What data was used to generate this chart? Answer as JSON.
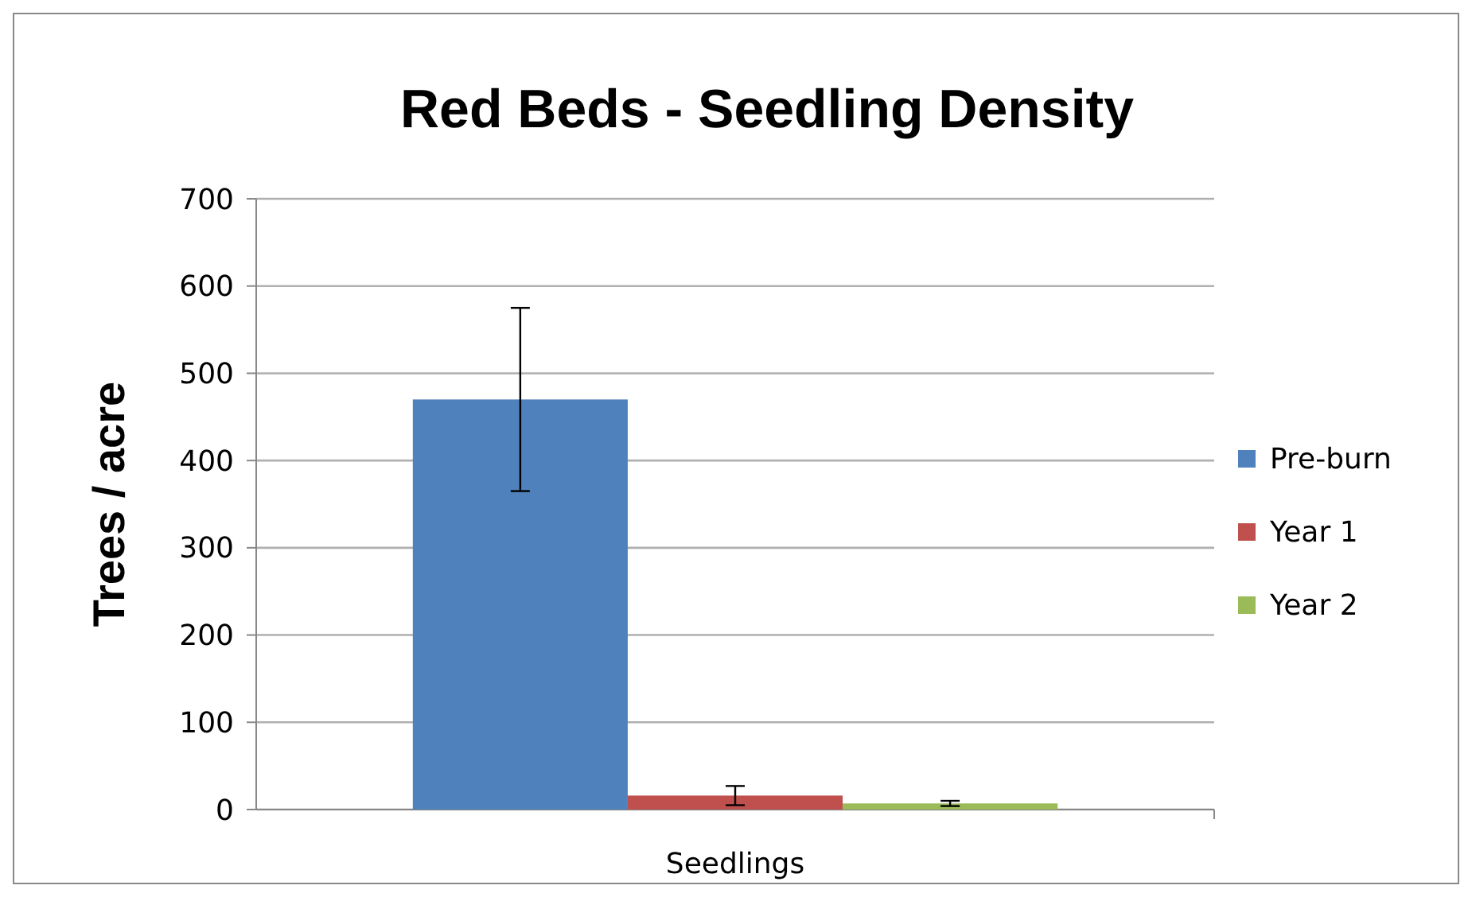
{
  "chart_data": {
    "type": "bar",
    "title": "Red Beds - Seedling Density",
    "ylabel": "Trees / acre",
    "categories": [
      "Seedlings"
    ],
    "series": [
      {
        "name": "Pre-burn",
        "color": "#4f81bd",
        "values": [
          470
        ],
        "errors": [
          105
        ]
      },
      {
        "name": "Year 1",
        "color": "#c0504d",
        "values": [
          16
        ],
        "errors": [
          11
        ]
      },
      {
        "name": "Year 2",
        "color": "#9bbb59",
        "values": [
          7
        ],
        "errors": [
          3
        ]
      }
    ],
    "ylim": [
      0,
      700
    ],
    "yticks": [
      0,
      100,
      200,
      300,
      400,
      500,
      600,
      700
    ],
    "grid": "y",
    "legend": "right"
  }
}
